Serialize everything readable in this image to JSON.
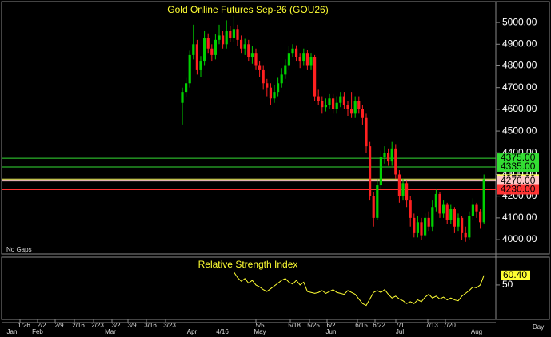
{
  "chart_data": [
    {
      "type": "candlestick",
      "title": "Gold Online Futures Sep-26 (GOU26)",
      "note": "No Gaps",
      "open": [
        4630,
        4680,
        4720,
        4850,
        4900,
        4780,
        4820,
        4930,
        4880,
        4850,
        4920,
        4940,
        4900,
        4960,
        4930,
        4970,
        4920,
        4880,
        4900,
        4840,
        4860,
        4800,
        4780,
        4720,
        4700,
        4650,
        4680,
        4720,
        4760,
        4800,
        4860,
        4880,
        4840,
        4820,
        4860,
        4800,
        4840,
        4660,
        4640,
        4610,
        4620,
        4650,
        4600,
        4630,
        4660,
        4620,
        4600,
        4580,
        4640,
        4600,
        4560,
        4430,
        4200,
        4100,
        4250,
        4380,
        4400,
        4360,
        4420,
        4300,
        4200,
        4260,
        4180,
        4100,
        4030,
        4080,
        4020,
        4100,
        4060,
        4150,
        4210,
        4120,
        4160,
        4090,
        4140,
        4060,
        4100,
        4030,
        4010,
        4110,
        4160,
        4130,
        4080
      ],
      "high": [
        4700,
        4745,
        4870,
        4990,
        4920,
        4845,
        4960,
        4950,
        4900,
        4945,
        4990,
        4960,
        5010,
        4985,
        5030,
        4990,
        4940,
        4925,
        4920,
        4890,
        4880,
        4820,
        4800,
        4740,
        4720,
        4710,
        4745,
        4790,
        4830,
        4890,
        4900,
        4895,
        4860,
        4880,
        4875,
        4860,
        4850,
        4690,
        4660,
        4650,
        4670,
        4670,
        4660,
        4680,
        4680,
        4640,
        4680,
        4660,
        4660,
        4620,
        4580,
        4450,
        4220,
        4280,
        4410,
        4430,
        4420,
        4450,
        4440,
        4320,
        4280,
        4270,
        4200,
        4120,
        4110,
        4100,
        4120,
        4130,
        4180,
        4230,
        4220,
        4180,
        4170,
        4160,
        4150,
        4120,
        4110,
        4060,
        4130,
        4190,
        4170,
        4140,
        4300
      ],
      "low": [
        4530,
        4655,
        4700,
        4830,
        4760,
        4750,
        4800,
        4860,
        4820,
        4830,
        4900,
        4880,
        4880,
        4910,
        4910,
        4890,
        4860,
        4850,
        4820,
        4810,
        4780,
        4750,
        4690,
        4660,
        4620,
        4630,
        4660,
        4700,
        4740,
        4780,
        4840,
        4820,
        4790,
        4800,
        4780,
        4780,
        4640,
        4620,
        4580,
        4590,
        4600,
        4580,
        4580,
        4610,
        4600,
        4570,
        4560,
        4560,
        4580,
        4530,
        4400,
        4180,
        4060,
        4090,
        4230,
        4350,
        4340,
        4340,
        4280,
        4170,
        4180,
        4150,
        4060,
        4010,
        4010,
        4000,
        4010,
        4040,
        4040,
        4130,
        4100,
        4100,
        4070,
        4070,
        4030,
        4040,
        4000,
        3990,
        4000,
        4090,
        4100,
        4050,
        4070
      ],
      "close": [
        4680,
        4720,
        4850,
        4900,
        4780,
        4820,
        4930,
        4880,
        4850,
        4920,
        4940,
        4900,
        4960,
        4930,
        4970,
        4920,
        4880,
        4900,
        4840,
        4860,
        4800,
        4780,
        4720,
        4700,
        4650,
        4680,
        4720,
        4760,
        4800,
        4860,
        4880,
        4840,
        4820,
        4860,
        4800,
        4840,
        4660,
        4640,
        4610,
        4620,
        4650,
        4600,
        4630,
        4660,
        4620,
        4600,
        4580,
        4640,
        4600,
        4560,
        4430,
        4200,
        4100,
        4250,
        4380,
        4400,
        4360,
        4420,
        4300,
        4200,
        4260,
        4180,
        4100,
        4030,
        4080,
        4020,
        4100,
        4060,
        4150,
        4210,
        4120,
        4160,
        4090,
        4140,
        4060,
        4100,
        4030,
        4010,
        4110,
        4160,
        4130,
        4080,
        4278.6
      ],
      "up_color": "#00d000",
      "down_color": "#ff2020",
      "ylim": [
        3934,
        5096
      ],
      "yticks": [
        {
          "value": 4000,
          "label": "4000.00"
        },
        {
          "value": 4100,
          "label": "4100.00"
        },
        {
          "value": 4200,
          "label": "4200.00"
        },
        {
          "value": 4300,
          "label": "4300.00"
        },
        {
          "value": 4400,
          "label": "4400.00"
        },
        {
          "value": 4500,
          "label": "4500.00"
        },
        {
          "value": 4600,
          "label": "4600.00"
        },
        {
          "value": 4700,
          "label": "4700.00"
        },
        {
          "value": 4800,
          "label": "4800.00"
        },
        {
          "value": 4900,
          "label": "4900.00"
        },
        {
          "value": 5000,
          "label": "5000.00"
        }
      ],
      "levels": [
        {
          "value": 4375,
          "label": "4375.00",
          "color": "#33dd33"
        },
        {
          "value": 4335,
          "label": "4335.00",
          "color": "#33dd33"
        },
        {
          "value": 4278.6,
          "label": "4278.60",
          "color": "#ffff66"
        },
        {
          "value": 4270,
          "label": "4270.00",
          "color": "#ffc8c8"
        },
        {
          "value": 4230,
          "label": "4230.00",
          "color": "#ff3333"
        }
      ],
      "week_labels": [
        "1/26",
        "2/2",
        "2/9",
        "2/16",
        "2/23",
        "3/2",
        "3/9",
        "3/16",
        "3/23",
        "5/5",
        "5/18",
        "5/25",
        "6/2",
        "6/15",
        "6/22",
        "7/1",
        "7/13",
        "7/20"
      ],
      "month_labels": [
        "Jan",
        "Feb",
        "Mar",
        "Apr",
        "4/16",
        "May",
        "Jun",
        "Jul",
        "Aug"
      ],
      "x_unit": "Day"
    },
    {
      "type": "line",
      "title": "Relative Strength Index",
      "color": "#ffff33",
      "values": [
        null,
        null,
        null,
        null,
        null,
        null,
        null,
        null,
        null,
        null,
        null,
        null,
        null,
        null,
        64,
        58,
        54,
        57,
        52,
        55,
        50,
        48,
        45,
        43,
        46,
        49,
        52,
        55,
        57,
        53,
        51,
        55,
        50,
        53,
        43,
        42,
        41,
        42,
        44,
        41,
        43,
        45,
        42,
        41,
        40,
        44,
        42,
        40,
        35,
        30,
        28,
        35,
        42,
        44,
        42,
        45,
        40,
        36,
        38,
        35,
        33,
        30,
        32,
        30,
        34,
        32,
        37,
        40,
        36,
        38,
        35,
        37,
        34,
        36,
        34,
        33,
        38,
        41,
        44,
        48,
        47,
        50,
        60.4
      ],
      "value_labels": [
        null,
        null,
        null,
        null,
        null,
        null,
        null,
        null,
        null,
        null,
        null,
        null,
        null,
        null,
        null,
        null,
        null,
        null,
        null,
        null,
        null,
        null,
        null,
        null,
        null,
        null,
        null,
        null,
        null,
        null,
        null,
        null,
        null,
        null,
        null,
        null,
        null,
        null,
        null,
        null,
        null,
        null,
        null,
        null,
        null,
        null,
        null,
        null,
        null,
        null,
        null,
        null,
        null,
        null,
        null,
        null,
        null,
        null,
        null,
        null,
        null,
        null,
        null,
        null,
        null,
        null,
        null,
        null,
        null,
        null,
        null,
        null,
        null,
        null,
        null,
        null,
        null,
        null,
        null,
        null,
        null,
        null,
        "60.40"
      ],
      "ylim": [
        13,
        80
      ],
      "yticks": [
        50
      ]
    }
  ]
}
